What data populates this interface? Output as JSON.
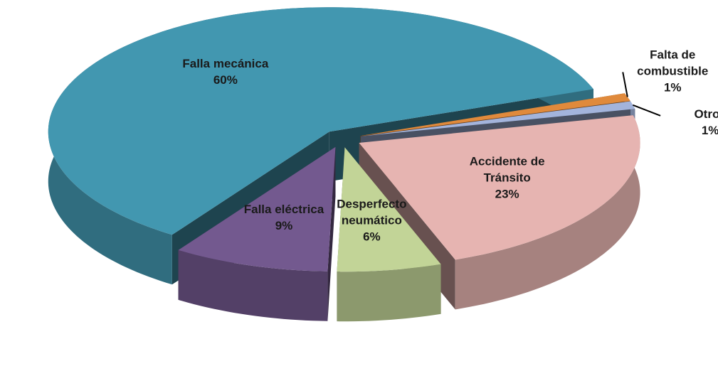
{
  "chart_data": {
    "type": "pie3d",
    "categories": [
      "Falta de combustible",
      "Otros",
      "Accidente de Tránsito",
      "Desperfecto neumático",
      "Falla eléctrica",
      "Falla mecánica"
    ],
    "values": [
      1,
      1,
      23,
      6,
      9,
      60
    ],
    "value_labels": [
      "1%",
      "1%",
      "23%",
      "6%",
      "9%",
      "60%"
    ],
    "colors": [
      "#e08a3c",
      "#a3b4dc",
      "#e6b4b1",
      "#c2d497",
      "#73598f",
      "#4297b0"
    ]
  }
}
